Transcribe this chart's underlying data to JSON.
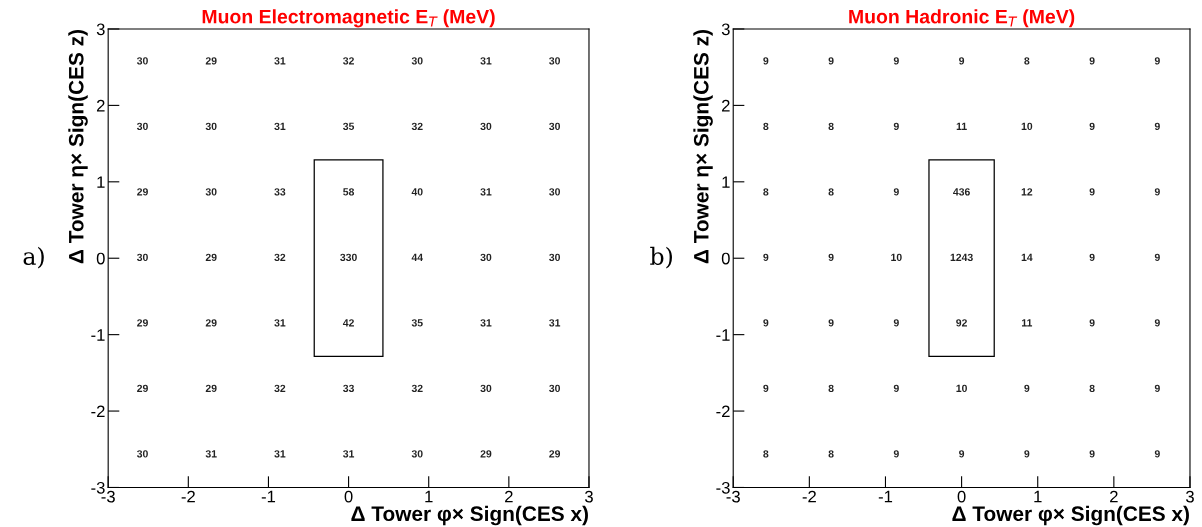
{
  "chart_data": [
    {
      "type": "heatmap",
      "title": "Muon Electromagnetic E$_{T}$ (MeV)",
      "xlabel": "Δ Tower φ× Sign(CES x)",
      "ylabel": "Δ Tower η× Sign(CES z)",
      "annotations": [
        "a)"
      ],
      "xlim": [
        -3,
        3
      ],
      "ylim": [
        -3,
        3
      ],
      "xticks": [
        -3,
        -2,
        -1,
        0,
        1,
        2,
        3
      ],
      "yticks": [
        -3,
        -2,
        -1,
        0,
        1,
        2,
        3
      ],
      "data_labels": true,
      "grid": false,
      "cells": [
        [
          30,
          29,
          31,
          32,
          30,
          31,
          30
        ],
        [
          30,
          30,
          31,
          35,
          32,
          30,
          30
        ],
        [
          29,
          30,
          33,
          58,
          40,
          31,
          30
        ],
        [
          30,
          29,
          32,
          330,
          44,
          30,
          30
        ],
        [
          29,
          29,
          31,
          42,
          35,
          31,
          31
        ],
        [
          29,
          29,
          32,
          33,
          32,
          30,
          30
        ],
        [
          30,
          31,
          31,
          31,
          30,
          29,
          29
        ]
      ]
    },
    {
      "type": "heatmap",
      "title": "Muon Hadronic E$_{T}$ (MeV)",
      "xlabel": "Δ Tower φ× Sign(CES x)",
      "ylabel": "Δ Tower η× Sign(CES z)",
      "annotations": [
        "b)"
      ],
      "xlim": [
        -3,
        3
      ],
      "ylim": [
        -3,
        3
      ],
      "xticks": [
        -3,
        -2,
        -1,
        0,
        1,
        2,
        3
      ],
      "yticks": [
        -3,
        -2,
        -1,
        0,
        1,
        2,
        3
      ],
      "data_labels": true,
      "grid": false,
      "cells": [
        [
          9,
          9,
          9,
          9,
          8,
          9,
          9
        ],
        [
          8,
          8,
          9,
          11,
          10,
          9,
          9
        ],
        [
          8,
          8,
          9,
          436,
          12,
          9,
          9
        ],
        [
          9,
          9,
          10,
          1243,
          14,
          9,
          9
        ],
        [
          9,
          9,
          9,
          92,
          11,
          9,
          9
        ],
        [
          9,
          8,
          9,
          10,
          9,
          8,
          9
        ],
        [
          8,
          8,
          9,
          9,
          9,
          9,
          9
        ]
      ]
    }
  ]
}
